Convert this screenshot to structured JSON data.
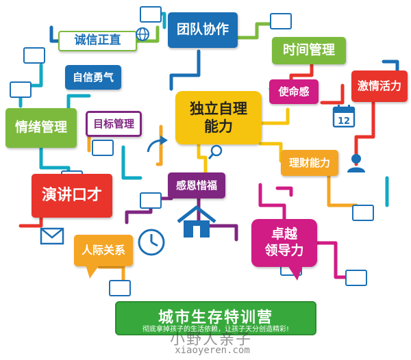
{
  "colors": {
    "blue": "#1a6fb5",
    "green": "#7cba3d",
    "yellow": "#f6c40e",
    "red": "#e8342b",
    "magenta": "#d01c84",
    "orange": "#f5a524",
    "purple": "#7f2680",
    "teal": "#11a9c4",
    "banner": "#37a93c"
  },
  "nodes": {
    "integrity": "诚信正直",
    "teamwork": "团队协作",
    "time_management": "时间管理",
    "self_confidence": "自信勇气",
    "mission": "使命感",
    "passion": "激情活力",
    "emotion_management": "情绪管理",
    "goal_management": "目标管理",
    "independence": "独立自理\n能力",
    "financial": "理财能力",
    "gratitude": "感恩惜福",
    "speech": "演讲口才",
    "leadership": "卓越\n领导力",
    "relationships": "人际关系"
  },
  "calendar_number": "12",
  "banner": {
    "title": "城市生存特训营",
    "subtitle": "彻底拿掉孩子的生活依赖，让孩子天分创造精彩!"
  },
  "watermark": {
    "name": "小野人亲子",
    "site": "xiaoyeren.com"
  }
}
